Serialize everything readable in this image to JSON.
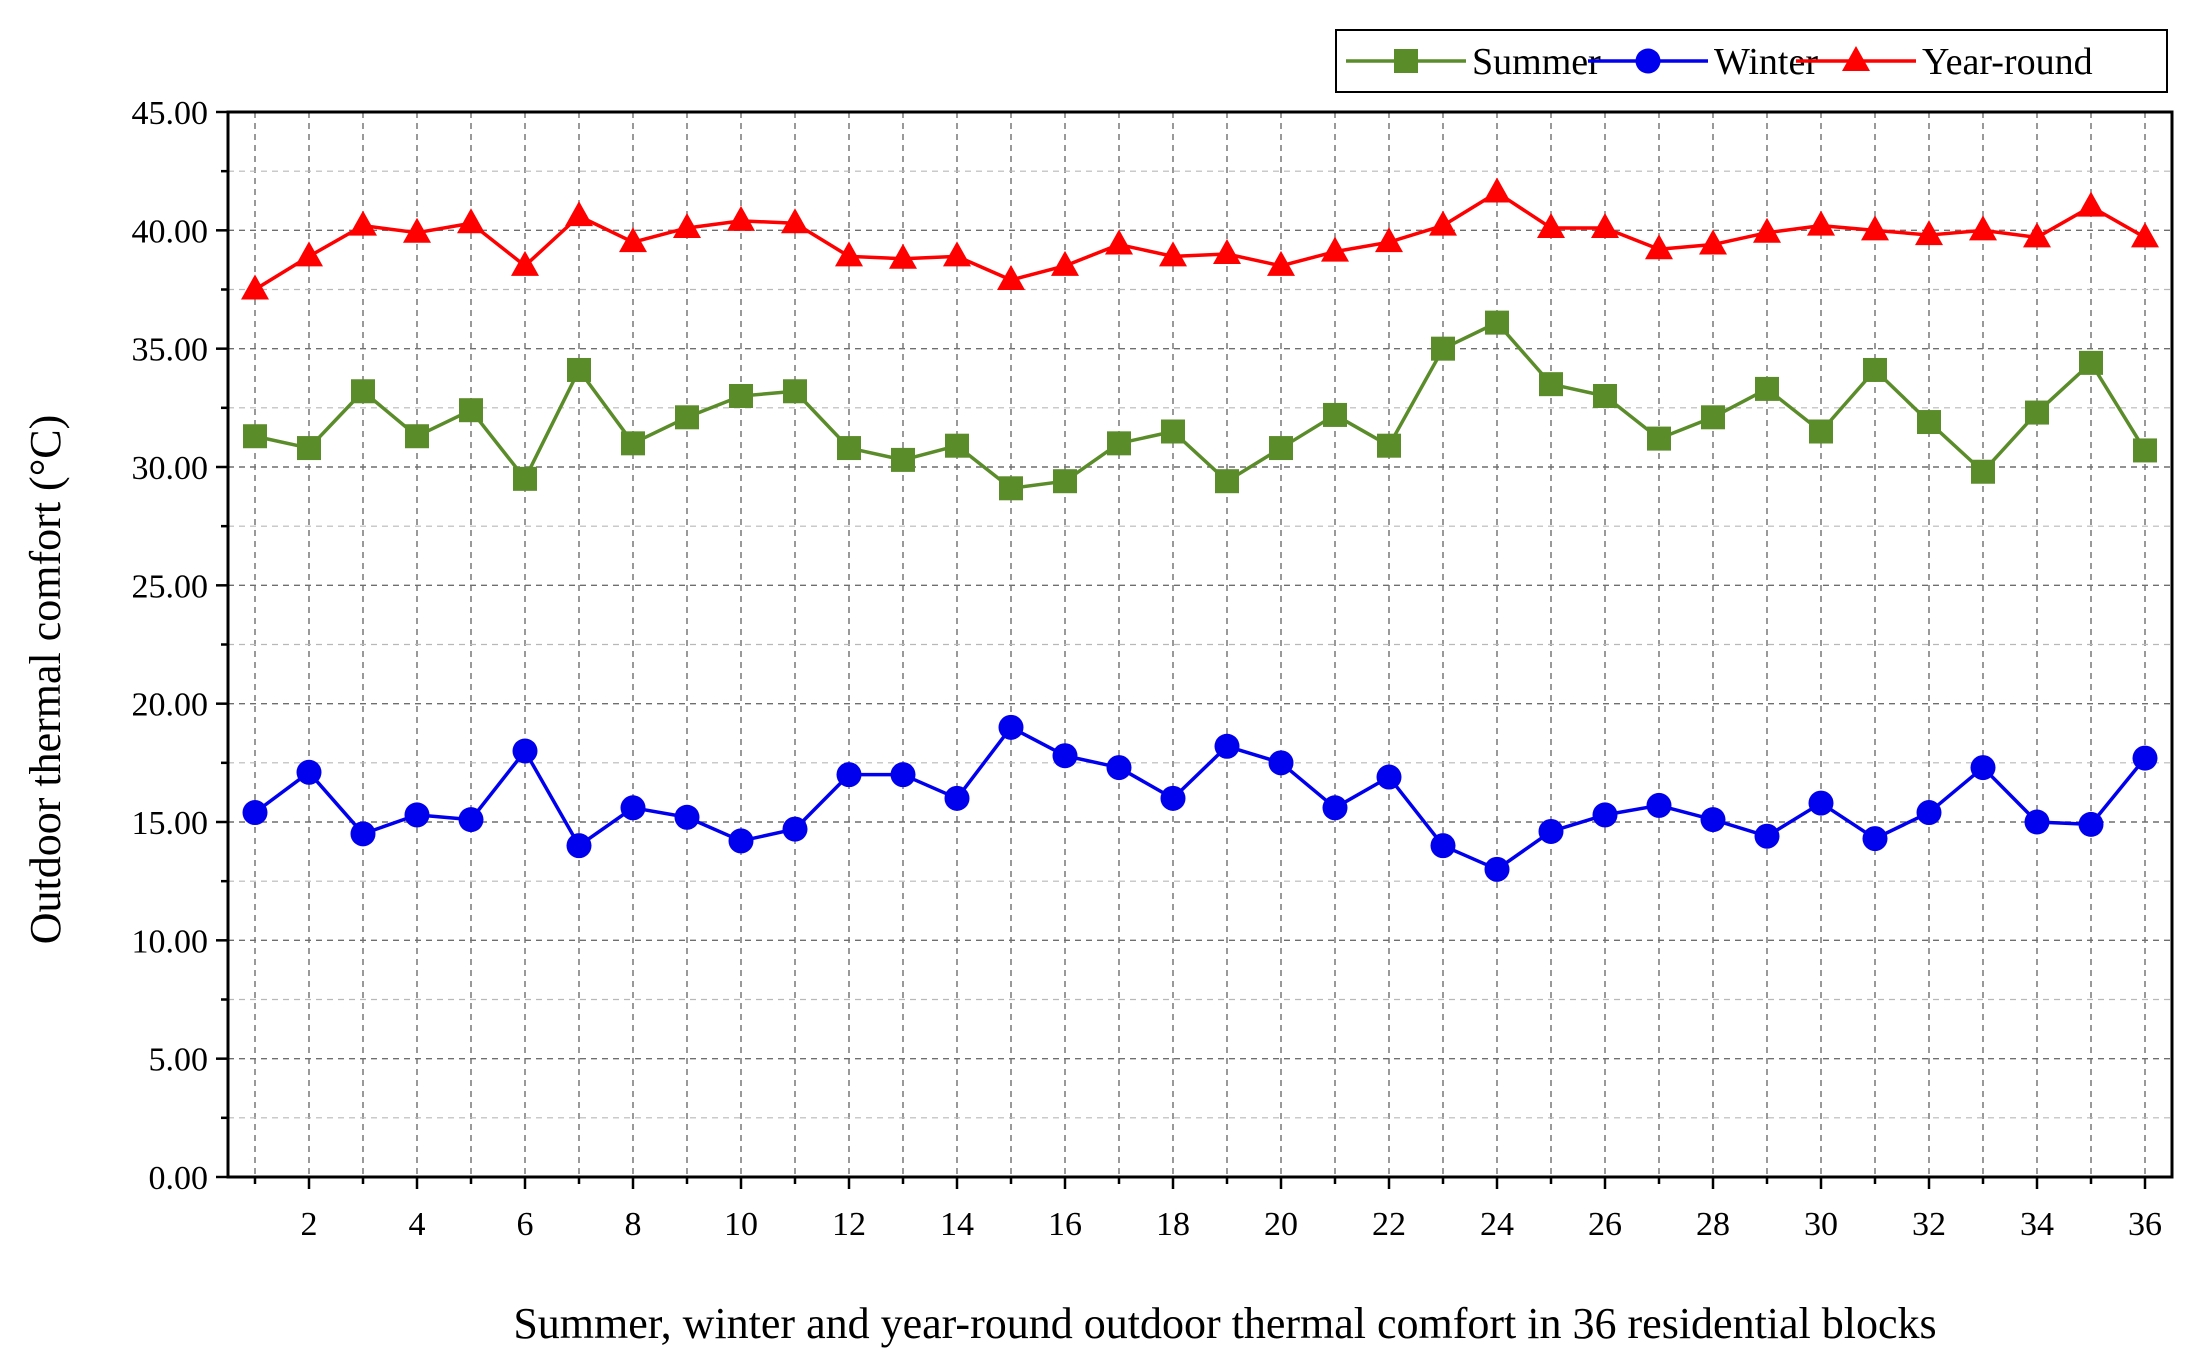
{
  "chart_data": {
    "type": "line",
    "title": "",
    "xlabel": "Summer, winter and year-round outdoor thermal comfort in 36 residential blocks",
    "ylabel": "Outdoor thermal comfort (°C)",
    "xlim": [
      0.5,
      36.5
    ],
    "ylim": [
      0,
      45
    ],
    "grid": true,
    "legend_position": "top-right",
    "x": [
      1,
      2,
      3,
      4,
      5,
      6,
      7,
      8,
      9,
      10,
      11,
      12,
      13,
      14,
      15,
      16,
      17,
      18,
      19,
      20,
      21,
      22,
      23,
      24,
      25,
      26,
      27,
      28,
      29,
      30,
      31,
      32,
      33,
      34,
      35,
      36
    ],
    "x_tick_labels": [
      "2",
      "4",
      "6",
      "8",
      "10",
      "12",
      "14",
      "16",
      "18",
      "20",
      "22",
      "24",
      "26",
      "28",
      "30",
      "32",
      "34",
      "36"
    ],
    "y_tick_labels": [
      "0.00",
      "5.00",
      "10.00",
      "15.00",
      "20.00",
      "25.00",
      "30.00",
      "35.00",
      "40.00",
      "45.00"
    ],
    "series": [
      {
        "name": "Summer",
        "color": "#5b8c2a",
        "marker": "square",
        "values": [
          31.3,
          30.8,
          33.2,
          31.3,
          32.4,
          29.5,
          34.1,
          31.0,
          32.1,
          33.0,
          33.2,
          30.8,
          30.3,
          30.9,
          29.1,
          29.4,
          31.0,
          31.5,
          29.4,
          30.8,
          32.2,
          30.9,
          35.0,
          36.1,
          33.5,
          33.0,
          31.2,
          32.1,
          33.3,
          31.5,
          34.1,
          31.9,
          29.8,
          32.3,
          34.4,
          30.7
        ]
      },
      {
        "name": "Winter",
        "color": "#0000ee",
        "marker": "circle",
        "values": [
          15.4,
          17.1,
          14.5,
          15.3,
          15.1,
          18.0,
          14.0,
          15.6,
          15.2,
          14.2,
          14.7,
          17.0,
          17.0,
          16.0,
          19.0,
          17.8,
          17.3,
          16.0,
          18.2,
          17.5,
          15.6,
          16.9,
          14.0,
          13.0,
          14.6,
          15.3,
          15.7,
          15.1,
          14.4,
          15.8,
          14.3,
          15.4,
          17.3,
          15.0,
          14.9,
          17.7
        ]
      },
      {
        "name": "Year-round",
        "color": "#ff0000",
        "marker": "triangle",
        "values": [
          37.5,
          38.9,
          40.2,
          39.9,
          40.3,
          38.5,
          40.6,
          39.5,
          40.1,
          40.4,
          40.3,
          38.9,
          38.8,
          38.9,
          37.9,
          38.5,
          39.4,
          38.9,
          39.0,
          38.5,
          39.1,
          39.5,
          40.2,
          41.6,
          40.1,
          40.1,
          39.2,
          39.4,
          39.9,
          40.2,
          40.0,
          39.8,
          40.0,
          39.7,
          41.0,
          39.7
        ]
      }
    ]
  }
}
